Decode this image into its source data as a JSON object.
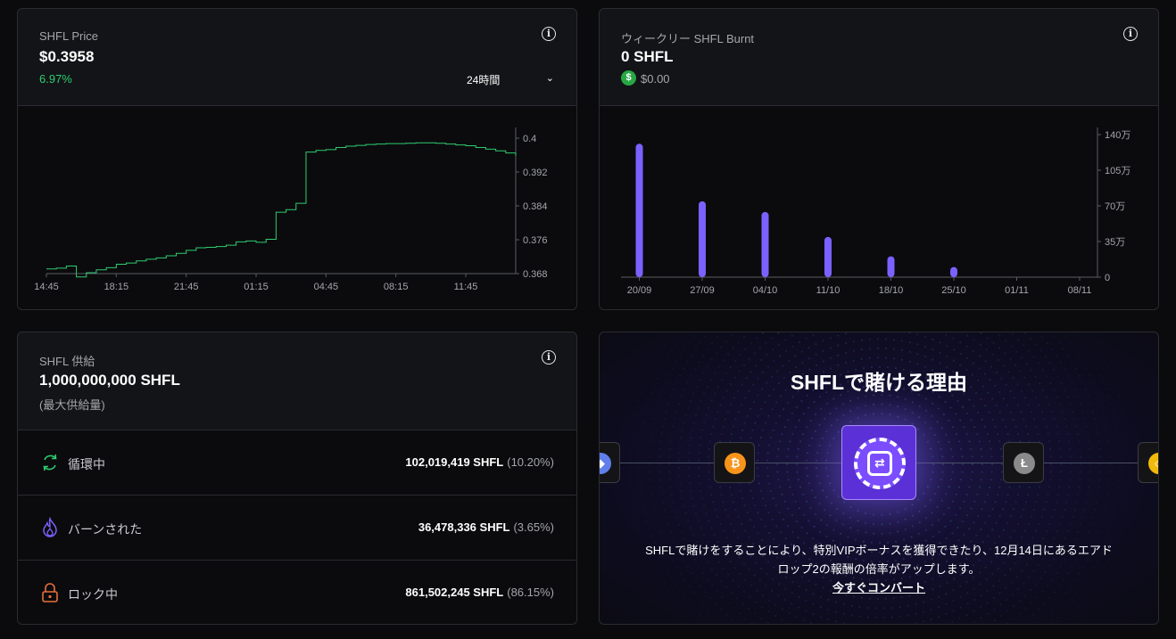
{
  "price_card": {
    "title": "SHFL Price",
    "value": "$0.3958",
    "change": "6.97%",
    "timeframe": "24時間",
    "chart_data": {
      "type": "line",
      "x_ticks": [
        "14:45",
        "18:15",
        "21:45",
        "01:15",
        "04:45",
        "08:15",
        "11:45"
      ],
      "y_ticks": [
        "0.4",
        "0.392",
        "0.384",
        "0.376",
        "0.368"
      ],
      "ylim": [
        0.368,
        0.4
      ],
      "color": "#2ecc71",
      "x": [
        0,
        0.5,
        1,
        1.5,
        2,
        2.5,
        3,
        3.5,
        4,
        4.5,
        5,
        5.5,
        6,
        6.5,
        7,
        7.5,
        8,
        8.5,
        9,
        9.5,
        10,
        10.5,
        11,
        11.5,
        12,
        12.5,
        13,
        13.5,
        14,
        14.5,
        15,
        15.5,
        16,
        16.5,
        17,
        17.5,
        18,
        18.5,
        19,
        19.5,
        20,
        20.5,
        21,
        21.5,
        22,
        22.5,
        23,
        23.5
      ],
      "values": [
        0.3691,
        0.3693,
        0.3698,
        0.3672,
        0.3682,
        0.3689,
        0.3694,
        0.3702,
        0.3705,
        0.371,
        0.3714,
        0.3717,
        0.3722,
        0.3728,
        0.3735,
        0.3741,
        0.3742,
        0.3744,
        0.3747,
        0.3755,
        0.3757,
        0.3754,
        0.3761,
        0.3825,
        0.3831,
        0.3846,
        0.3967,
        0.3971,
        0.3973,
        0.3978,
        0.3981,
        0.3983,
        0.3985,
        0.3986,
        0.3987,
        0.3987,
        0.3988,
        0.3989,
        0.3989,
        0.3988,
        0.3986,
        0.3984,
        0.3982,
        0.3978,
        0.3974,
        0.397,
        0.3965,
        0.3958
      ]
    }
  },
  "burn_card": {
    "title": "ウィークリー SHFL Burnt",
    "value": "0 SHFL",
    "usd_value": "$0.00",
    "chart_data": {
      "type": "bar",
      "categories": [
        "20/09",
        "27/09",
        "04/10",
        "11/10",
        "18/10",
        "25/10",
        "01/11",
        "08/11"
      ],
      "values": [
        1310000,
        745000,
        640000,
        395000,
        205000,
        100000,
        0,
        0
      ],
      "y_ticks": [
        "140万",
        "105万",
        "70万",
        "35万",
        "0"
      ],
      "ylim": [
        0,
        1400000
      ],
      "color": "#7b61ff"
    }
  },
  "supply_card": {
    "title": "SHFL 供給",
    "value": "1,000,000,000 SHFL",
    "sublabel": "(最大供給量)",
    "rows": [
      {
        "label": "循環中",
        "amount": "102,019,419 SHFL",
        "pct": "(10.20%)"
      },
      {
        "label": "バーンされた",
        "amount": "36,478,336 SHFL",
        "pct": "(3.65%)"
      },
      {
        "label": "ロック中",
        "amount": "861,502,245 SHFL",
        "pct": "(86.15%)"
      }
    ]
  },
  "promo_card": {
    "title": "SHFLで賭ける理由",
    "body_line1": "SHFLで賭けをすることにより、特別VIPボーナスを獲得できたり、12月14日にあるエアド",
    "body_line2": "ロップ2の報酬の倍率がアップします。",
    "link": "今すぐコンバート"
  }
}
